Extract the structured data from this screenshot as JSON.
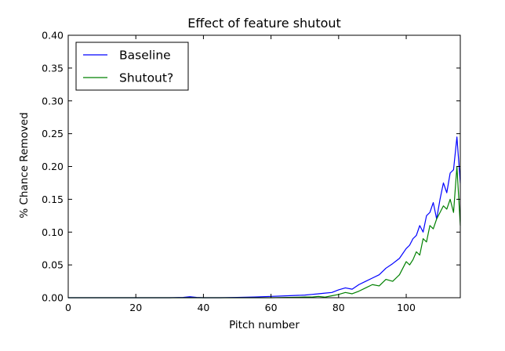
{
  "chart_data": {
    "type": "line",
    "title": "Effect of feature shutout",
    "xlabel": "Pitch number",
    "ylabel": "% Chance Removed",
    "xlim": [
      0,
      116
    ],
    "ylim": [
      0,
      0.4
    ],
    "xticks": [
      0,
      20,
      40,
      60,
      80,
      100
    ],
    "xtick_labels": [
      "0",
      "20",
      "40",
      "60",
      "80",
      "100"
    ],
    "yticks": [
      0.0,
      0.05,
      0.1,
      0.15,
      0.2,
      0.25,
      0.3,
      0.35,
      0.4
    ],
    "ytick_labels": [
      "0.00",
      "0.05",
      "0.10",
      "0.15",
      "0.20",
      "0.25",
      "0.30",
      "0.35",
      "0.40"
    ],
    "grid": false,
    "legend_position": "top-left",
    "series": [
      {
        "name": "Baseline",
        "color": "#0000ff",
        "x": [
          0,
          5,
          10,
          15,
          20,
          25,
          30,
          34,
          36,
          38,
          40,
          45,
          50,
          55,
          60,
          65,
          70,
          72,
          74,
          76,
          78,
          80,
          82,
          84,
          86,
          88,
          90,
          92,
          94,
          96,
          98,
          100,
          101,
          102,
          103,
          104,
          105,
          106,
          107,
          108,
          109,
          110,
          111,
          112,
          113,
          114,
          115,
          116
        ],
        "y": [
          0,
          0,
          0,
          0,
          0,
          0,
          0,
          0.0005,
          0.0015,
          0.0005,
          0,
          0,
          0.0005,
          0.001,
          0.002,
          0.003,
          0.004,
          0.005,
          0.006,
          0.007,
          0.008,
          0.012,
          0.015,
          0.013,
          0.02,
          0.025,
          0.03,
          0.035,
          0.045,
          0.052,
          0.06,
          0.075,
          0.08,
          0.09,
          0.095,
          0.11,
          0.1,
          0.125,
          0.13,
          0.145,
          0.12,
          0.15,
          0.175,
          0.16,
          0.19,
          0.195,
          0.245,
          0.175
        ]
      },
      {
        "name": "Shutout?",
        "color": "#008000",
        "x": [
          0,
          5,
          10,
          15,
          20,
          25,
          30,
          35,
          40,
          45,
          50,
          55,
          60,
          65,
          70,
          72,
          74,
          76,
          78,
          80,
          82,
          84,
          86,
          88,
          90,
          92,
          94,
          96,
          98,
          100,
          101,
          102,
          103,
          104,
          105,
          106,
          107,
          108,
          109,
          110,
          111,
          112,
          113,
          114,
          115,
          116
        ],
        "y": [
          0,
          0,
          0,
          0,
          0,
          0,
          0,
          0,
          0,
          0,
          0,
          0,
          0,
          0.0005,
          0.001,
          0.001,
          0.002,
          0.001,
          0.003,
          0.005,
          0.008,
          0.006,
          0.01,
          0.015,
          0.02,
          0.018,
          0.028,
          0.025,
          0.035,
          0.055,
          0.05,
          0.058,
          0.07,
          0.065,
          0.09,
          0.085,
          0.11,
          0.105,
          0.12,
          0.13,
          0.14,
          0.135,
          0.15,
          0.13,
          0.2,
          0.11
        ]
      }
    ]
  }
}
